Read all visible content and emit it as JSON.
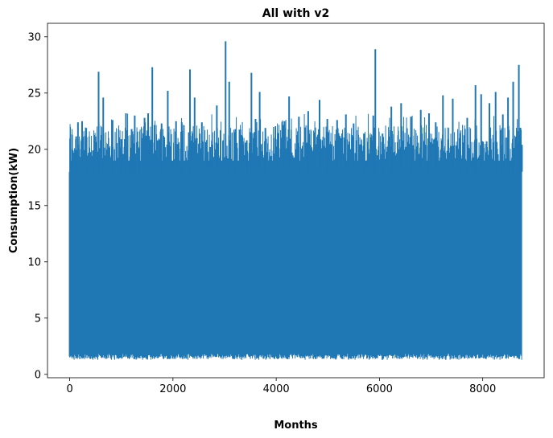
{
  "chart_data": {
    "type": "line",
    "title": "All with v2",
    "xlabel": "Months",
    "ylabel": "Consumption(kW)",
    "xlim": [
      -430,
      9190
    ],
    "ylim": [
      -0.3,
      31.2
    ],
    "xticks": [
      0,
      2000,
      4000,
      6000,
      8000
    ],
    "yticks": [
      0,
      5,
      10,
      15,
      20,
      25,
      30
    ],
    "xtick_labels": [
      "0",
      "2000",
      "4000",
      "6000",
      "8000"
    ],
    "ytick_labels": [
      "0",
      "5",
      "10",
      "15",
      "20",
      "25",
      "30"
    ],
    "grid": false,
    "legend": "none",
    "series": [
      {
        "color": "#1f77b4",
        "x_range": [
          0,
          8760
        ],
        "min": 1.3,
        "typical_low": 1.6,
        "typical_high": 20.0,
        "values": [
          [
            0,
            10.3
          ],
          [
            50,
            20.0
          ],
          [
            120,
            20.9
          ],
          [
            160,
            22.4
          ],
          [
            240,
            22.5
          ],
          [
            320,
            21.9
          ],
          [
            450,
            19.9
          ],
          [
            560,
            26.9
          ],
          [
            650,
            24.6
          ],
          [
            830,
            22.6
          ],
          [
            1000,
            20.9
          ],
          [
            1090,
            23.2
          ],
          [
            1200,
            21.8
          ],
          [
            1260,
            23.0
          ],
          [
            1350,
            20.1
          ],
          [
            1450,
            22.8
          ],
          [
            1520,
            23.2
          ],
          [
            1600,
            27.3
          ],
          [
            1700,
            20.8
          ],
          [
            1780,
            22.3
          ],
          [
            1900,
            25.2
          ],
          [
            2060,
            22.5
          ],
          [
            2170,
            22.4
          ],
          [
            2330,
            27.1
          ],
          [
            2420,
            24.6
          ],
          [
            2560,
            22.4
          ],
          [
            2720,
            20.2
          ],
          [
            2850,
            23.9
          ],
          [
            3020,
            29.6
          ],
          [
            3090,
            26.0
          ],
          [
            3210,
            21.8
          ],
          [
            3350,
            20.7
          ],
          [
            3430,
            20.8
          ],
          [
            3520,
            26.8
          ],
          [
            3600,
            22.7
          ],
          [
            3680,
            25.1
          ],
          [
            3790,
            21.9
          ],
          [
            4020,
            20.9
          ],
          [
            4160,
            22.5
          ],
          [
            4250,
            24.7
          ],
          [
            4440,
            22.9
          ],
          [
            4620,
            23.4
          ],
          [
            4840,
            24.4
          ],
          [
            4990,
            22.7
          ],
          [
            5180,
            22.6
          ],
          [
            5350,
            23.1
          ],
          [
            5500,
            22.3
          ],
          [
            5700,
            21.4
          ],
          [
            5880,
            23.0
          ],
          [
            5920,
            28.9
          ],
          [
            6060,
            21.4
          ],
          [
            6230,
            23.8
          ],
          [
            6420,
            24.1
          ],
          [
            6610,
            22.9
          ],
          [
            6800,
            23.5
          ],
          [
            6960,
            23.2
          ],
          [
            7090,
            22.4
          ],
          [
            7230,
            24.8
          ],
          [
            7420,
            24.5
          ],
          [
            7560,
            21.0
          ],
          [
            7700,
            22.8
          ],
          [
            7860,
            25.7
          ],
          [
            7970,
            24.9
          ],
          [
            8130,
            24.1
          ],
          [
            8250,
            25.1
          ],
          [
            8390,
            23.1
          ],
          [
            8490,
            24.6
          ],
          [
            8590,
            26.0
          ],
          [
            8700,
            27.5
          ],
          [
            8760,
            20.4
          ]
        ]
      }
    ]
  }
}
